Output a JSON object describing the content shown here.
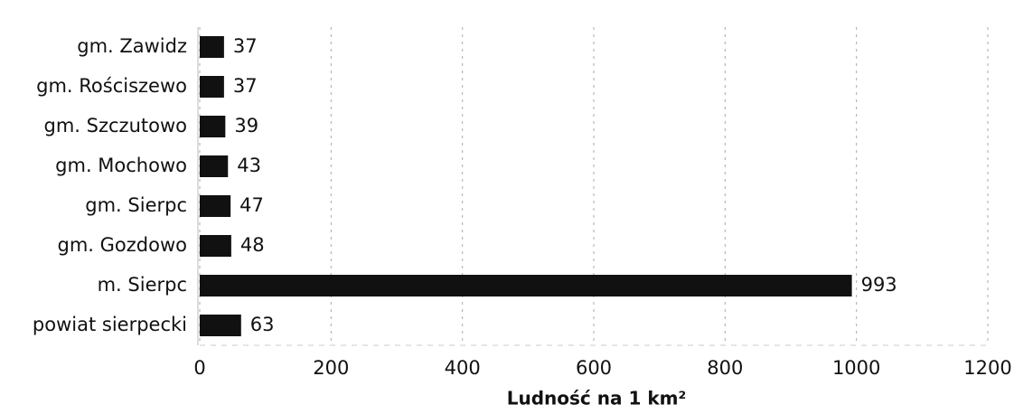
{
  "chart_data": {
    "type": "bar",
    "orientation": "horizontal",
    "categories": [
      "gm. Zawidz",
      "gm. Rościszewo",
      "gm. Szczutowo",
      "gm. Mochowo",
      "gm. Sierpc",
      "gm. Gozdowo",
      "m. Sierpc",
      "powiat sierpecki"
    ],
    "values": [
      37,
      37,
      39,
      43,
      47,
      48,
      993,
      63
    ],
    "color": "#111111",
    "xlabel": "Ludność na 1 km²",
    "xlim": [
      0,
      1200
    ],
    "xticks": [
      0,
      200,
      400,
      600,
      800,
      1000,
      1200
    ],
    "grid": true
  }
}
